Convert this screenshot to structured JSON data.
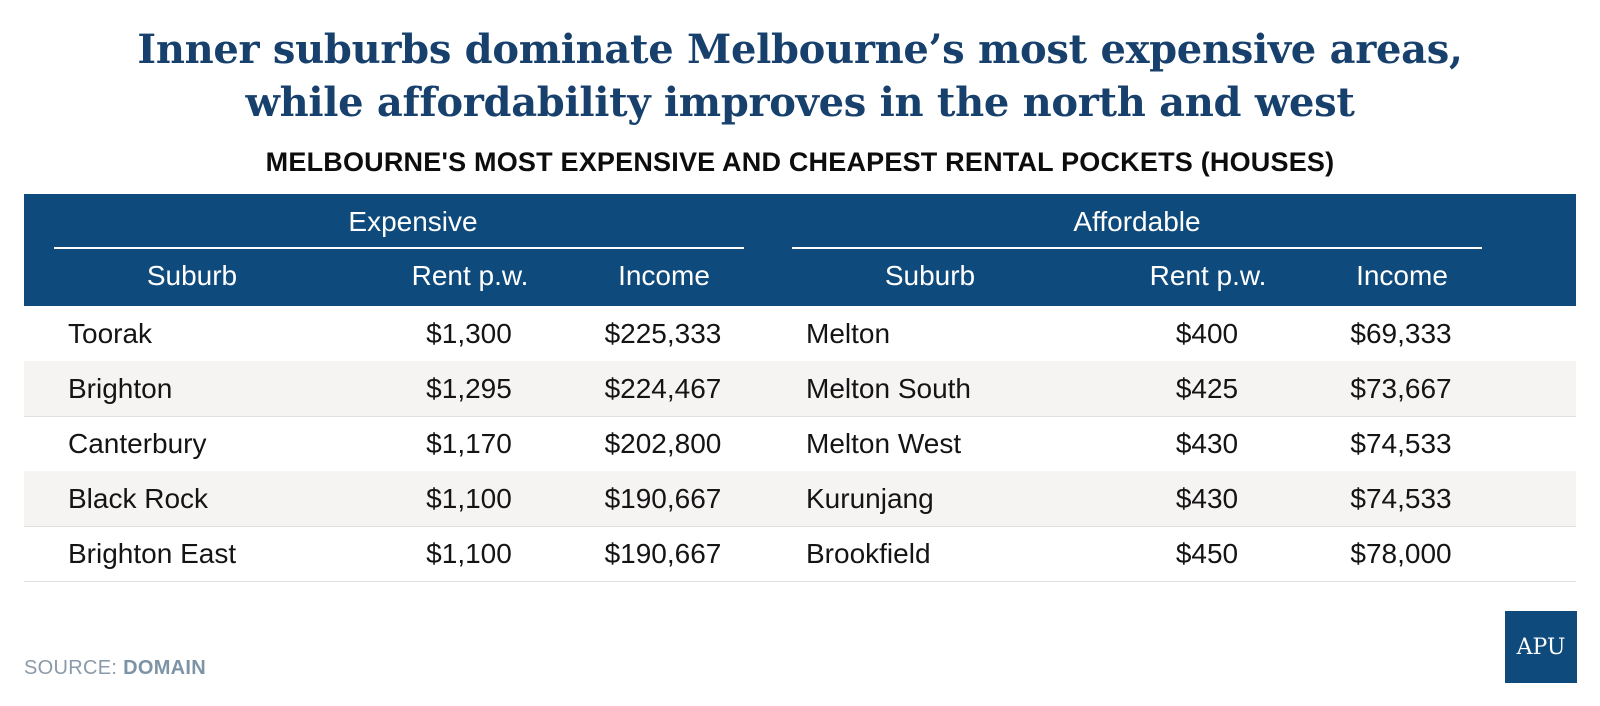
{
  "headline": {
    "line1": "Inner suburbs dominate Melbourne’s most expensive areas,",
    "line2": "while affordability improves in the north and west"
  },
  "subtitle": "MELBOURNE'S MOST EXPENSIVE AND CHEAPEST RENTAL POCKETS (HOUSES)",
  "source": {
    "label": "SOURCE:",
    "value": "DOMAIN"
  },
  "logo": "APU",
  "colors": {
    "header_bg": "#0e4a7c",
    "headline": "#17406d",
    "alt_row": "#f6f3f3"
  },
  "chart_data": {
    "type": "table",
    "title": "MELBOURNE'S MOST EXPENSIVE AND CHEAPEST RENTAL POCKETS (HOUSES)",
    "groups": [
      {
        "name": "Expensive",
        "columns": [
          "Suburb",
          "Rent p.w.",
          "Income"
        ],
        "rows": [
          [
            "Toorak",
            "$1,300",
            "$225,333"
          ],
          [
            "Brighton",
            "$1,295",
            "$224,467"
          ],
          [
            "Canterbury",
            "$1,170",
            "$202,800"
          ],
          [
            "Black Rock",
            "$1,100",
            "$190,667"
          ],
          [
            "Brighton East",
            "$1,100",
            "$190,667"
          ]
        ]
      },
      {
        "name": "Affordable",
        "columns": [
          "Suburb",
          "Rent p.w.",
          "Income"
        ],
        "rows": [
          [
            "Melton",
            "$400",
            "$69,333"
          ],
          [
            "Melton South",
            "$425",
            "$73,667"
          ],
          [
            "Melton West",
            "$430",
            "$74,533"
          ],
          [
            "Kurunjang",
            "$430",
            "$74,533"
          ],
          [
            "Brookfield",
            "$450",
            "$78,000"
          ]
        ]
      }
    ]
  }
}
